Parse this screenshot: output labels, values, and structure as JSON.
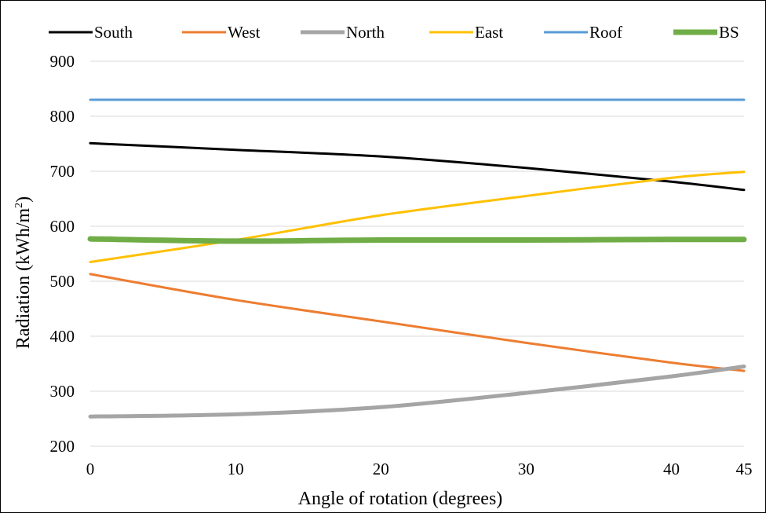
{
  "chart_data": {
    "type": "line",
    "xlabel": "Angle of rotation (degrees)",
    "ylabel": "Radiation (kWh/m²)",
    "ylabel_parts": {
      "main": "Radiation (kWh/m",
      "sup": "2",
      "close": ")"
    },
    "x": [
      0,
      10,
      20,
      30,
      40,
      45
    ],
    "xlim": [
      0,
      45
    ],
    "ylim": [
      200,
      900
    ],
    "yticks": [
      200,
      300,
      400,
      500,
      600,
      700,
      800,
      900
    ],
    "xticks": [
      0,
      10,
      20,
      30,
      40,
      45
    ],
    "grid": "horizontal",
    "legend_position": "top",
    "series": [
      {
        "name": "South",
        "color": "#000000",
        "width": 3,
        "values": [
          751,
          739,
          727,
          706,
          681,
          666
        ]
      },
      {
        "name": "West",
        "color": "#ED7D31",
        "width": 3,
        "values": [
          513,
          466,
          427,
          388,
          352,
          337
        ]
      },
      {
        "name": "North",
        "color": "#A5A5A5",
        "width": 5,
        "values": [
          254,
          258,
          271,
          297,
          327,
          345
        ]
      },
      {
        "name": "East",
        "color": "#FFC000",
        "width": 3,
        "values": [
          535,
          575,
          620,
          655,
          688,
          699
        ]
      },
      {
        "name": "Roof",
        "color": "#5B9BD5",
        "width": 3,
        "values": [
          830,
          830,
          830,
          830,
          830,
          830
        ]
      },
      {
        "name": "BS",
        "color": "#70AD47",
        "width": 7,
        "values": [
          577,
          573,
          575,
          575,
          576,
          576
        ]
      }
    ]
  }
}
